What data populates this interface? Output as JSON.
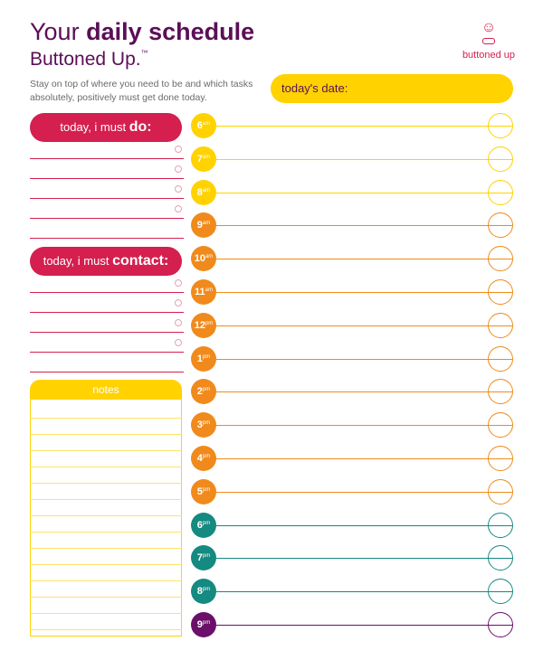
{
  "header": {
    "title_prefix": "Your",
    "title_bold": "daily schedule",
    "subtitle": "Buttoned Up.",
    "trademark": "™",
    "intro": "Stay on top of where you need to be and which tasks absolutely, positively must get done today.",
    "date_label": "today's date:"
  },
  "logo": {
    "text": "buttoned up",
    "mark": "☺"
  },
  "left": {
    "do_prefix": "today, i must",
    "do_bold": "do:",
    "contact_prefix": "today, i must",
    "contact_bold": "contact:",
    "notes_label": "notes"
  },
  "hours": [
    {
      "num": "6",
      "suffix": "am",
      "color": "#ffd200"
    },
    {
      "num": "7",
      "suffix": "am",
      "color": "#ffd200"
    },
    {
      "num": "8",
      "suffix": "am",
      "color": "#ffd200"
    },
    {
      "num": "9",
      "suffix": "am",
      "color": "#f08a1c"
    },
    {
      "num": "10",
      "suffix": "am",
      "color": "#f08a1c"
    },
    {
      "num": "11",
      "suffix": "am",
      "color": "#f08a1c"
    },
    {
      "num": "12",
      "suffix": "pm",
      "color": "#f08a1c"
    },
    {
      "num": "1",
      "suffix": "pm",
      "color": "#f08a1c"
    },
    {
      "num": "2",
      "suffix": "pm",
      "color": "#f08a1c"
    },
    {
      "num": "3",
      "suffix": "pm",
      "color": "#f08a1c"
    },
    {
      "num": "4",
      "suffix": "pm",
      "color": "#f08a1c"
    },
    {
      "num": "5",
      "suffix": "pm",
      "color": "#f08a1c"
    },
    {
      "num": "6",
      "suffix": "pm",
      "color": "#148a80"
    },
    {
      "num": "7",
      "suffix": "pm",
      "color": "#148a80"
    },
    {
      "num": "8",
      "suffix": "pm",
      "color": "#148a80"
    },
    {
      "num": "9",
      "suffix": "pm",
      "color": "#6b0f6b"
    }
  ],
  "colors": {
    "accent": "#d41f4f",
    "yellow": "#ffd200",
    "purple": "#5b0f57"
  }
}
